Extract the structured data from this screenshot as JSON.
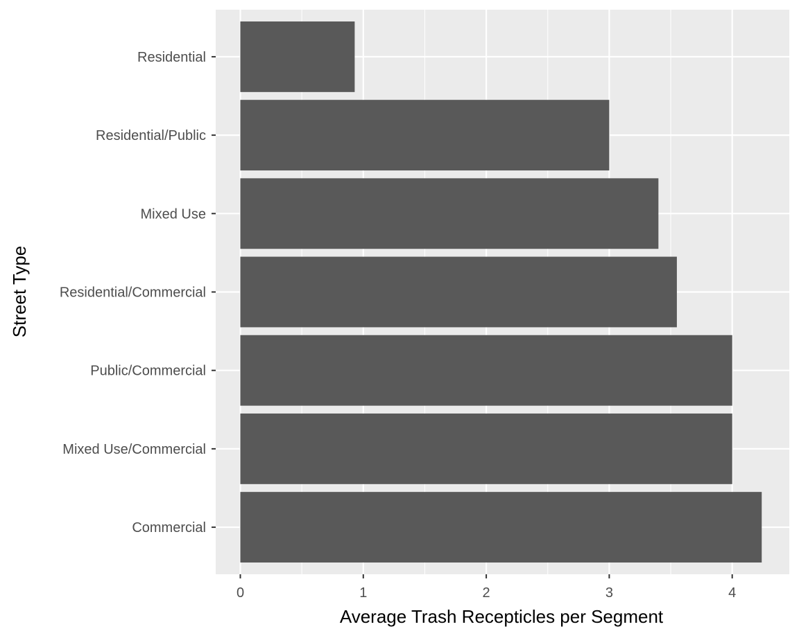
{
  "chart_data": {
    "type": "bar",
    "orientation": "horizontal",
    "title": "",
    "xlabel": "Average Trash Recepticles per Segment",
    "ylabel": "Street Type",
    "categories": [
      "Residential",
      "Residential/Public",
      "Mixed Use",
      "Residential/Commercial",
      "Public/Commercial",
      "Mixed Use/Commercial",
      "Commercial"
    ],
    "values": [
      0.93,
      3.0,
      3.4,
      3.55,
      4.0,
      4.0,
      4.24
    ],
    "xlim": [
      0,
      4.45
    ],
    "xticks": [
      "0",
      "1",
      "2",
      "3",
      "4"
    ],
    "grid": true,
    "legend": "none",
    "colors": {
      "bar": "#595959",
      "panel": "#ebebeb",
      "grid": "#ffffff",
      "tick_text": "#4d4d4d",
      "title_text": "#000000"
    }
  }
}
